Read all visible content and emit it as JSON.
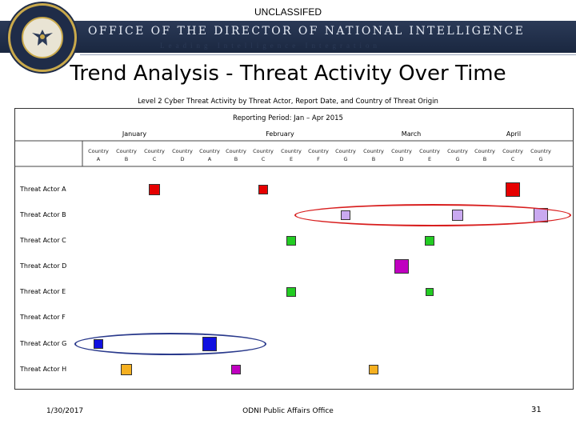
{
  "classification": "UNCLASSIFED",
  "banner": {
    "title": "OFFICE OF THE DIRECTOR OF NATIONAL INTELLIGENCE",
    "subtitle": "Leading Intelligence Integration"
  },
  "page_title": "Trend Analysis - Threat Activity Over Time",
  "chart_data": {
    "type": "scatter",
    "title": "Level 2 Cyber Threat Activity by Threat Actor, Report Date, and Country of Threat Origin",
    "subtitle": "Reporting Period: Jan – Apr 2015",
    "months": [
      "January",
      "February",
      "March",
      "April"
    ],
    "columns": [
      {
        "month": "January",
        "line1": "Country",
        "line2": "A"
      },
      {
        "month": "January",
        "line1": "Country",
        "line2": "B"
      },
      {
        "month": "January",
        "line1": "Country",
        "line2": "C"
      },
      {
        "month": "January",
        "line1": "Country",
        "line2": "D"
      },
      {
        "month": "February",
        "line1": "Country",
        "line2": "A"
      },
      {
        "month": "February",
        "line1": "Country",
        "line2": "B"
      },
      {
        "month": "February",
        "line1": "Country",
        "line2": "C"
      },
      {
        "month": "February",
        "line1": "Country",
        "line2": "E"
      },
      {
        "month": "February",
        "line1": "Country",
        "line2": "F"
      },
      {
        "month": "February",
        "line1": "Country",
        "line2": "G"
      },
      {
        "month": "March",
        "line1": "Country",
        "line2": "B"
      },
      {
        "month": "March",
        "line1": "Country",
        "line2": "D"
      },
      {
        "month": "March",
        "line1": "Country",
        "line2": "E"
      },
      {
        "month": "March",
        "line1": "Country",
        "line2": "G"
      },
      {
        "month": "April",
        "line1": "Country",
        "line2": "B"
      },
      {
        "month": "April",
        "line1": "Country",
        "line2": "C"
      },
      {
        "month": "April",
        "line1": "Country",
        "line2": "G"
      }
    ],
    "actors": [
      "Threat Actor A",
      "Threat Actor B",
      "Threat Actor C",
      "Threat Actor D",
      "Threat Actor E",
      "Threat Actor F",
      "Threat Actor G",
      "Threat Actor H"
    ],
    "points": [
      {
        "actor": 0,
        "col": 2,
        "level": 2,
        "color": "#e60000"
      },
      {
        "actor": 0,
        "col": 6,
        "level": 1,
        "color": "#e60000"
      },
      {
        "actor": 0,
        "col": 15,
        "level": 3,
        "color": "#e60000"
      },
      {
        "actor": 1,
        "col": 9,
        "level": 1,
        "color": "#c9a9f0"
      },
      {
        "actor": 1,
        "col": 13,
        "level": 2,
        "color": "#c9a9f0"
      },
      {
        "actor": 1,
        "col": 16,
        "level": 3,
        "color": "#c9a9f0"
      },
      {
        "actor": 2,
        "col": 7,
        "level": 1,
        "color": "#22cc22"
      },
      {
        "actor": 2,
        "col": 12,
        "level": 1,
        "color": "#22cc22"
      },
      {
        "actor": 3,
        "col": 11,
        "level": 3,
        "color": "#c000c0"
      },
      {
        "actor": 4,
        "col": 7,
        "level": 1,
        "color": "#22cc22"
      },
      {
        "actor": 4,
        "col": 12,
        "level": 0,
        "color": "#22cc22"
      },
      {
        "actor": 6,
        "col": 0,
        "level": 1,
        "color": "#1010e0"
      },
      {
        "actor": 6,
        "col": 4,
        "level": 3,
        "color": "#1010e0"
      },
      {
        "actor": 7,
        "col": 1,
        "level": 2,
        "color": "#f5b020"
      },
      {
        "actor": 7,
        "col": 5,
        "level": 1,
        "color": "#c000c0"
      },
      {
        "actor": 7,
        "col": 10,
        "level": 1,
        "color": "#f5b020"
      }
    ],
    "highlights": [
      {
        "actor": 1,
        "from_col": 8,
        "to_col": 16,
        "color": "#d81e1e"
      },
      {
        "actor": 6,
        "from_col": 0,
        "to_col": 5,
        "color": "#2a3a8c"
      }
    ]
  },
  "footer": {
    "date": "1/30/2017",
    "organization": "ODNI Public Affairs Office",
    "page": "31"
  }
}
